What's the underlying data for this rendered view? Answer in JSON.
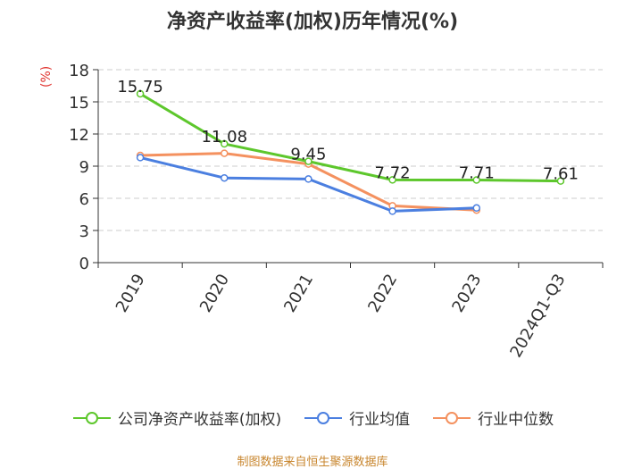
{
  "title": "净资产收益率(加权)历年情况(%)",
  "unit": "(%)",
  "source": "制图数据来自恒生聚源数据库",
  "colors": {
    "company": "#5dc72c",
    "industry_avg": "#4b7fe0",
    "industry_median": "#f4915f",
    "axis": "#333333",
    "grid": "#cccccc",
    "unit": "#e0342f",
    "source": "#c8862e"
  },
  "chart_data": {
    "type": "line",
    "categories": [
      "2019",
      "2020",
      "2021",
      "2022",
      "2023",
      "2024Q1-Q3"
    ],
    "ylim": [
      0,
      18
    ],
    "yticks": [
      0,
      3,
      6,
      9,
      12,
      15,
      18
    ],
    "grid": true,
    "legend_position": "bottom",
    "series": [
      {
        "name": "公司净资产收益率(加权)",
        "color_key": "company",
        "values": [
          15.75,
          11.08,
          9.45,
          7.72,
          7.71,
          7.61
        ],
        "labels": [
          "15.75",
          "11.08",
          "9.45",
          "7.72",
          "7.71",
          "7.61"
        ]
      },
      {
        "name": "行业均值",
        "color_key": "industry_avg",
        "values": [
          9.8,
          7.9,
          7.8,
          4.8,
          5.1,
          null
        ]
      },
      {
        "name": "行业中位数",
        "color_key": "industry_median",
        "values": [
          10.0,
          10.2,
          9.2,
          5.3,
          4.9,
          null
        ]
      }
    ]
  }
}
